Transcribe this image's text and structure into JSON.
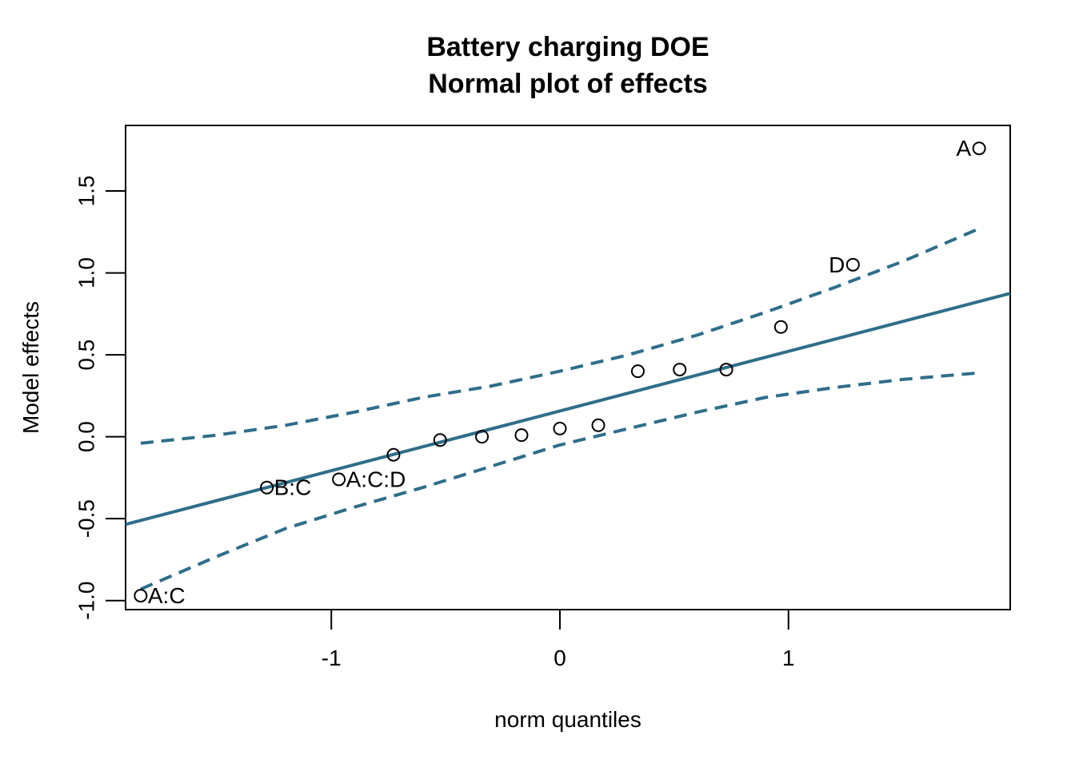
{
  "chart_data": {
    "type": "scatter",
    "title": "Battery charging DOE",
    "subtitle": "Normal plot of effects",
    "xlabel": "norm quantiles",
    "ylabel": "Model effects",
    "xlim": [
      -1.9,
      1.97
    ],
    "ylim": [
      -1.055,
      1.9
    ],
    "xticks": [
      -1,
      0,
      1
    ],
    "xtick_labels": [
      "-1",
      "0",
      "1"
    ],
    "yticks": [
      -1.0,
      -0.5,
      0.0,
      0.5,
      1.0,
      1.5
    ],
    "ytick_labels": [
      "-1.0",
      "-0.5",
      "0.0",
      "0.5",
      "1.0",
      "1.5"
    ],
    "grid": false,
    "line_color": "#2e6e8a",
    "points": [
      {
        "x": -1.834,
        "y": -0.97,
        "label": "A:C",
        "label_pos": "right"
      },
      {
        "x": -1.282,
        "y": -0.31,
        "label": "B:C",
        "label_pos": "right"
      },
      {
        "x": -0.967,
        "y": -0.26,
        "label": "A:C:D",
        "label_pos": "right"
      },
      {
        "x": -0.728,
        "y": -0.11,
        "label": "",
        "label_pos": "right"
      },
      {
        "x": -0.524,
        "y": -0.02,
        "label": "",
        "label_pos": "right"
      },
      {
        "x": -0.341,
        "y": 0.0,
        "label": "",
        "label_pos": "right"
      },
      {
        "x": -0.168,
        "y": 0.01,
        "label": "",
        "label_pos": "right"
      },
      {
        "x": 0.0,
        "y": 0.05,
        "label": "",
        "label_pos": "right"
      },
      {
        "x": 0.168,
        "y": 0.07,
        "label": "",
        "label_pos": "right"
      },
      {
        "x": 0.341,
        "y": 0.4,
        "label": "",
        "label_pos": "right"
      },
      {
        "x": 0.524,
        "y": 0.41,
        "label": "",
        "label_pos": "right"
      },
      {
        "x": 0.728,
        "y": 0.41,
        "label": "",
        "label_pos": "right"
      },
      {
        "x": 0.967,
        "y": 0.67,
        "label": "",
        "label_pos": "right"
      },
      {
        "x": 1.282,
        "y": 1.05,
        "label": "D",
        "label_pos": "left"
      },
      {
        "x": 1.834,
        "y": 1.76,
        "label": "A",
        "label_pos": "left"
      }
    ],
    "reference_line": {
      "x": [
        -1.9,
        1.97
      ],
      "y": [
        -0.535,
        0.875
      ]
    },
    "confidence_upper": {
      "x": [
        -1.834,
        -1.5,
        -1.2,
        -0.9,
        -0.6,
        -0.3,
        0.0,
        0.3,
        0.6,
        0.9,
        1.2,
        1.5,
        1.834
      ],
      "y": [
        -0.04,
        0.01,
        0.07,
        0.15,
        0.24,
        0.31,
        0.4,
        0.5,
        0.62,
        0.76,
        0.91,
        1.07,
        1.27
      ]
    },
    "confidence_lower": {
      "x": [
        -1.834,
        -1.5,
        -1.2,
        -0.9,
        -0.6,
        -0.3,
        0.0,
        0.3,
        0.6,
        0.9,
        1.2,
        1.5,
        1.834
      ],
      "y": [
        -0.93,
        -0.73,
        -0.56,
        -0.43,
        -0.31,
        -0.18,
        -0.05,
        0.05,
        0.15,
        0.24,
        0.3,
        0.35,
        0.39
      ]
    }
  }
}
